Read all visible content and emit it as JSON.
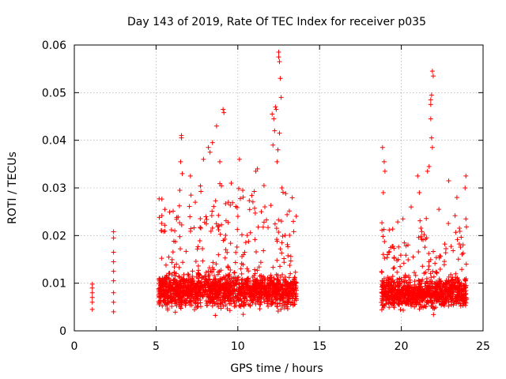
{
  "chart_data": {
    "type": "scatter",
    "title": "Day 143 of 2019, Rate Of TEC Index for receiver p035",
    "xlabel": "GPS time / hours",
    "ylabel": "ROTI / TECUs",
    "xlim": [
      0,
      25
    ],
    "ylim": [
      0,
      0.06
    ],
    "xticks": [
      0,
      5,
      10,
      15,
      20,
      25
    ],
    "xtick_labels": [
      "0",
      "5",
      "10",
      "15",
      "20",
      "25"
    ],
    "yticks": [
      0,
      0.01,
      0.02,
      0.03,
      0.04,
      0.05,
      0.06
    ],
    "ytick_labels": [
      "0",
      "0.01",
      "0.02",
      "0.03",
      "0.04",
      "0.05",
      "0.06"
    ],
    "grid": true,
    "marker": "+",
    "series": [
      {
        "name": "ROTI",
        "color": "#ff0000",
        "points": [
          [
            1.1,
            0.0045
          ],
          [
            1.1,
            0.006
          ],
          [
            1.1,
            0.007
          ],
          [
            1.1,
            0.008
          ],
          [
            1.1,
            0.009
          ],
          [
            1.1,
            0.0098
          ],
          [
            2.4,
            0.004
          ],
          [
            2.4,
            0.006
          ],
          [
            2.4,
            0.008
          ],
          [
            2.4,
            0.0105
          ],
          [
            2.4,
            0.0125
          ],
          [
            2.4,
            0.0145
          ],
          [
            2.4,
            0.0165
          ],
          [
            2.4,
            0.0195
          ],
          [
            2.4,
            0.0208
          ],
          [
            5.2,
            0.0238
          ],
          [
            6.55,
            0.041
          ],
          [
            6.55,
            0.0405
          ],
          [
            6.5,
            0.0355
          ],
          [
            6.45,
            0.0295
          ],
          [
            6.6,
            0.033
          ],
          [
            7.1,
            0.0325
          ],
          [
            7.4,
            0.027
          ],
          [
            7.9,
            0.036
          ],
          [
            8.2,
            0.0385
          ],
          [
            8.3,
            0.0375
          ],
          [
            8.7,
            0.043
          ],
          [
            8.45,
            0.0395
          ],
          [
            8.9,
            0.0355
          ],
          [
            9.1,
            0.0465
          ],
          [
            9.15,
            0.0458
          ],
          [
            9.6,
            0.031
          ],
          [
            10.1,
            0.036
          ],
          [
            10.3,
            0.0295
          ],
          [
            11.1,
            0.0335
          ],
          [
            11.2,
            0.034
          ],
          [
            11.6,
            0.0305
          ],
          [
            12.1,
            0.0455
          ],
          [
            12.2,
            0.0445
          ],
          [
            12.3,
            0.047
          ],
          [
            12.35,
            0.0465
          ],
          [
            12.25,
            0.042
          ],
          [
            12.15,
            0.039
          ],
          [
            12.5,
            0.0585
          ],
          [
            12.55,
            0.0565
          ],
          [
            12.5,
            0.0575
          ],
          [
            12.6,
            0.053
          ],
          [
            12.65,
            0.049
          ],
          [
            12.55,
            0.0415
          ],
          [
            12.45,
            0.038
          ],
          [
            12.7,
            0.03
          ],
          [
            12.4,
            0.0355
          ],
          [
            18.85,
            0.0385
          ],
          [
            18.95,
            0.0355
          ],
          [
            19.0,
            0.0335
          ],
          [
            18.9,
            0.029
          ],
          [
            21.8,
            0.0485
          ],
          [
            21.85,
            0.0495
          ],
          [
            21.8,
            0.0475
          ],
          [
            21.9,
            0.0545
          ],
          [
            21.95,
            0.0535
          ],
          [
            21.8,
            0.0445
          ],
          [
            21.85,
            0.0405
          ],
          [
            21.9,
            0.0385
          ],
          [
            21.6,
            0.0335
          ],
          [
            21.7,
            0.0345
          ],
          [
            21.0,
            0.0325
          ],
          [
            21.1,
            0.029
          ],
          [
            22.9,
            0.0315
          ],
          [
            23.4,
            0.028
          ],
          [
            23.95,
            0.0325
          ],
          [
            23.9,
            0.03
          ],
          [
            23.95,
            0.0235
          ],
          [
            22.3,
            0.0255
          ],
          [
            20.6,
            0.026
          ],
          [
            20.1,
            0.0235
          ]
        ],
        "clusters": [
          {
            "t_start": 5.15,
            "t_end": 13.6,
            "count": 1700,
            "y_min": 0.0015,
            "y_typical": 0.0085,
            "y_spread": 0.0055,
            "y_max": 0.036
          },
          {
            "t_start": 18.75,
            "t_end": 24.0,
            "count": 1050,
            "y_min": 0.0015,
            "y_typical": 0.008,
            "y_spread": 0.005,
            "y_max": 0.026
          }
        ]
      }
    ]
  }
}
